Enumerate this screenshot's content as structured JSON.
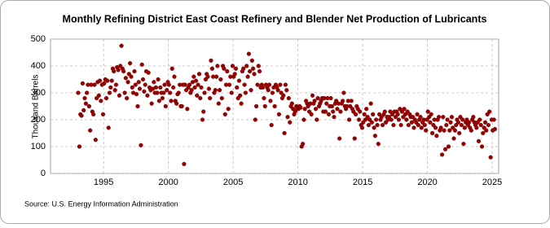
{
  "chart_data": {
    "type": "scatter",
    "title": "Monthly Refining District East Coast Refinery and Blender Net Production of Lubricants",
    "y_label": "Thousand Barrels",
    "source": "Source: U.S. Energy Information Administration",
    "color": "#990000",
    "grid": true,
    "xlim": [
      1990.9,
      2025.5
    ],
    "xticks": [
      1995,
      2000,
      2005,
      2010,
      2015,
      2020,
      2025
    ],
    "ylim": [
      0,
      500
    ],
    "yticks": [
      0,
      100,
      200,
      300,
      400,
      500
    ],
    "x": [
      1993.04,
      1993.13,
      1993.21,
      1993.29,
      1993.38,
      1993.46,
      1993.54,
      1993.63,
      1993.71,
      1993.79,
      1993.88,
      1993.96,
      1994.04,
      1994.13,
      1994.21,
      1994.29,
      1994.38,
      1994.46,
      1994.54,
      1994.63,
      1994.71,
      1994.79,
      1994.88,
      1994.96,
      1995.04,
      1995.13,
      1995.21,
      1995.29,
      1995.38,
      1995.46,
      1995.54,
      1995.63,
      1995.71,
      1995.79,
      1995.88,
      1995.96,
      1996.04,
      1996.13,
      1996.21,
      1996.29,
      1996.38,
      1996.46,
      1996.54,
      1996.63,
      1996.71,
      1996.79,
      1996.88,
      1996.96,
      1997.04,
      1997.13,
      1997.21,
      1997.29,
      1997.38,
      1997.46,
      1997.54,
      1997.63,
      1997.71,
      1997.79,
      1997.88,
      1997.96,
      1998.04,
      1998.13,
      1998.21,
      1998.29,
      1998.38,
      1998.46,
      1998.54,
      1998.63,
      1998.71,
      1998.79,
      1998.88,
      1998.96,
      1999.04,
      1999.13,
      1999.21,
      1999.29,
      1999.38,
      1999.46,
      1999.54,
      1999.63,
      1999.71,
      1999.79,
      1999.88,
      1999.96,
      2000.04,
      2000.13,
      2000.21,
      2000.29,
      2000.38,
      2000.46,
      2000.54,
      2000.63,
      2000.71,
      2000.79,
      2000.88,
      2000.96,
      2001.04,
      2001.13,
      2001.21,
      2001.29,
      2001.38,
      2001.46,
      2001.54,
      2001.63,
      2001.71,
      2001.79,
      2001.88,
      2001.96,
      2002.04,
      2002.13,
      2002.21,
      2002.29,
      2002.38,
      2002.46,
      2002.54,
      2002.63,
      2002.71,
      2002.79,
      2002.88,
      2002.96,
      2003.04,
      2003.13,
      2003.21,
      2003.29,
      2003.38,
      2003.46,
      2003.54,
      2003.63,
      2003.71,
      2003.79,
      2003.88,
      2003.96,
      2004.04,
      2004.13,
      2004.21,
      2004.29,
      2004.38,
      2004.46,
      2004.54,
      2004.63,
      2004.71,
      2004.79,
      2004.88,
      2004.96,
      2005.04,
      2005.13,
      2005.21,
      2005.29,
      2005.38,
      2005.46,
      2005.54,
      2005.63,
      2005.71,
      2005.79,
      2005.88,
      2005.96,
      2006.04,
      2006.13,
      2006.21,
      2006.29,
      2006.38,
      2006.46,
      2006.54,
      2006.63,
      2006.71,
      2006.79,
      2006.88,
      2006.96,
      2007.04,
      2007.13,
      2007.21,
      2007.29,
      2007.38,
      2007.46,
      2007.54,
      2007.63,
      2007.71,
      2007.79,
      2007.88,
      2007.96,
      2008.04,
      2008.13,
      2008.21,
      2008.29,
      2008.38,
      2008.46,
      2008.54,
      2008.63,
      2008.71,
      2008.79,
      2008.88,
      2008.96,
      2009.04,
      2009.13,
      2009.21,
      2009.29,
      2009.38,
      2009.46,
      2009.54,
      2009.63,
      2009.71,
      2009.79,
      2009.88,
      2009.96,
      2010.04,
      2010.13,
      2010.21,
      2010.29,
      2010.38,
      2010.46,
      2010.54,
      2010.63,
      2010.71,
      2010.79,
      2010.88,
      2010.96,
      2011.04,
      2011.13,
      2011.21,
      2011.29,
      2011.38,
      2011.46,
      2011.54,
      2011.63,
      2011.71,
      2011.79,
      2011.88,
      2011.96,
      2012.04,
      2012.13,
      2012.21,
      2012.29,
      2012.38,
      2012.46,
      2012.54,
      2012.63,
      2012.71,
      2012.79,
      2012.88,
      2012.96,
      2013.04,
      2013.13,
      2013.21,
      2013.29,
      2013.38,
      2013.46,
      2013.54,
      2013.63,
      2013.71,
      2013.79,
      2013.88,
      2013.96,
      2014.04,
      2014.13,
      2014.21,
      2014.29,
      2014.38,
      2014.46,
      2014.54,
      2014.63,
      2014.71,
      2014.79,
      2014.88,
      2014.96,
      2015.04,
      2015.13,
      2015.21,
      2015.29,
      2015.38,
      2015.46,
      2015.54,
      2015.63,
      2015.71,
      2015.79,
      2015.88,
      2015.96,
      2016.04,
      2016.13,
      2016.21,
      2016.29,
      2016.38,
      2016.46,
      2016.54,
      2016.63,
      2016.71,
      2016.79,
      2016.88,
      2016.96,
      2017.04,
      2017.13,
      2017.21,
      2017.29,
      2017.38,
      2017.46,
      2017.54,
      2017.63,
      2017.71,
      2017.79,
      2017.88,
      2017.96,
      2018.04,
      2018.13,
      2018.21,
      2018.29,
      2018.38,
      2018.46,
      2018.54,
      2018.63,
      2018.71,
      2018.79,
      2018.88,
      2018.96,
      2019.04,
      2019.13,
      2019.21,
      2019.29,
      2019.38,
      2019.46,
      2019.54,
      2019.63,
      2019.71,
      2019.79,
      2019.88,
      2019.96,
      2020.04,
      2020.13,
      2020.21,
      2020.29,
      2020.38,
      2020.46,
      2020.54,
      2020.63,
      2020.71,
      2020.79,
      2020.88,
      2020.96,
      2021.04,
      2021.13,
      2021.21,
      2021.29,
      2021.38,
      2021.46,
      2021.54,
      2021.63,
      2021.71,
      2021.79,
      2021.88,
      2021.96,
      2022.04,
      2022.13,
      2022.21,
      2022.29,
      2022.38,
      2022.46,
      2022.54,
      2022.63,
      2022.71,
      2022.79,
      2022.88,
      2022.96,
      2023.04,
      2023.13,
      2023.21,
      2023.29,
      2023.38,
      2023.46,
      2023.54,
      2023.63,
      2023.71,
      2023.79,
      2023.88,
      2023.96,
      2024.04,
      2024.13,
      2024.21,
      2024.29,
      2024.38,
      2024.46,
      2024.54,
      2024.63,
      2024.71,
      2024.79,
      2024.88,
      2024.96,
      2025.04,
      2025.13,
      2025.21
    ],
    "values": [
      300,
      100,
      220,
      215,
      335,
      235,
      280,
      260,
      300,
      330,
      250,
      160,
      330,
      230,
      220,
      330,
      125,
      280,
      340,
      290,
      345,
      270,
      330,
      220,
      335,
      350,
      280,
      345,
      170,
      300,
      320,
      345,
      390,
      380,
      310,
      330,
      395,
      385,
      290,
      400,
      475,
      390,
      380,
      300,
      355,
      280,
      340,
      370,
      410,
      360,
      320,
      300,
      380,
      330,
      295,
      250,
      340,
      315,
      105,
      405,
      350,
      305,
      330,
      380,
      290,
      375,
      320,
      310,
      260,
      315,
      340,
      300,
      320,
      300,
      350,
      270,
      320,
      300,
      280,
      300,
      330,
      250,
      310,
      340,
      330,
      300,
      270,
      390,
      320,
      360,
      270,
      260,
      295,
      300,
      330,
      250,
      250,
      330,
      35,
      330,
      310,
      240,
      320,
      330,
      300,
      310,
      340,
      360,
      320,
      345,
      290,
      330,
      370,
      280,
      320,
      200,
      230,
      300,
      350,
      370,
      360,
      315,
      280,
      420,
      390,
      360,
      300,
      310,
      360,
      400,
      260,
      310,
      350,
      280,
      400,
      390,
      220,
      330,
      380,
      240,
      330,
      360,
      300,
      400,
      360,
      370,
      390,
      320,
      280,
      345,
      290,
      260,
      380,
      390,
      330,
      300,
      400,
      360,
      445,
      380,
      310,
      420,
      390,
      370,
      200,
      250,
      330,
      400,
      380,
      320,
      330,
      320,
      280,
      250,
      330,
      320,
      310,
      330,
      270,
      180,
      300,
      320,
      250,
      330,
      320,
      310,
      220,
      330,
      300,
      280,
      290,
      150,
      330,
      310,
      210,
      280,
      190,
      250,
      260,
      240,
      220,
      230,
      250,
      240,
      240,
      250,
      245,
      100,
      110,
      200,
      240,
      270,
      260,
      250,
      230,
      260,
      220,
      290,
      260,
      270,
      240,
      200,
      280,
      250,
      260,
      270,
      280,
      230,
      280,
      230,
      260,
      280,
      220,
      250,
      280,
      250,
      230,
      210,
      260,
      270,
      240,
      260,
      130,
      230,
      260,
      270,
      300,
      250,
      240,
      250,
      270,
      200,
      250,
      270,
      240,
      230,
      130,
      220,
      250,
      240,
      200,
      230,
      180,
      170,
      190,
      220,
      200,
      240,
      210,
      180,
      200,
      260,
      190,
      220,
      170,
      140,
      200,
      180,
      110,
      220,
      200,
      210,
      180,
      220,
      230,
      190,
      210,
      200,
      210,
      230,
      200,
      220,
      180,
      230,
      210,
      230,
      220,
      200,
      240,
      180,
      230,
      210,
      240,
      220,
      200,
      230,
      180,
      220,
      210,
      190,
      210,
      170,
      200,
      190,
      220,
      180,
      200,
      210,
      170,
      190,
      200,
      180,
      160,
      200,
      230,
      210,
      190,
      220,
      150,
      180,
      200,
      170,
      140,
      200,
      210,
      160,
      170,
      70,
      210,
      160,
      90,
      180,
      200,
      100,
      160,
      190,
      210,
      170,
      130,
      160,
      180,
      200,
      190,
      150,
      210,
      180,
      200,
      110,
      170,
      190,
      200,
      180,
      190,
      170,
      160,
      200,
      210,
      190,
      180,
      170,
      190,
      120,
      200,
      180,
      100,
      150,
      170,
      190,
      160,
      220,
      180,
      230,
      60,
      200,
      160,
      200,
      165
    ]
  }
}
